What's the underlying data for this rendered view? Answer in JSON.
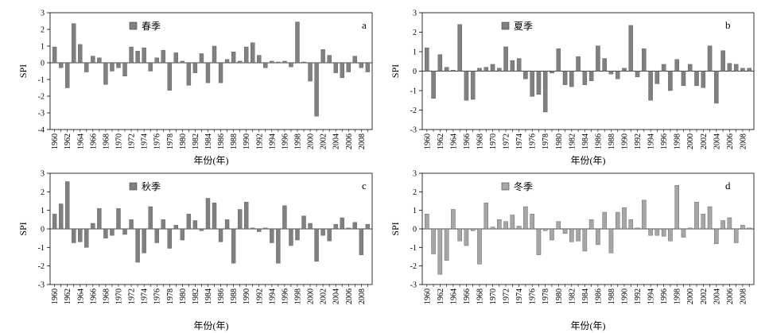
{
  "figure": {
    "xlabel": "年份(年)",
    "ylabel": "SPI"
  },
  "chart_data": [
    {
      "type": "bar",
      "panel": "a",
      "legend": "春季",
      "legend_placement": "top-left",
      "x": [
        1960,
        1961,
        1962,
        1963,
        1964,
        1965,
        1966,
        1967,
        1968,
        1969,
        1970,
        1971,
        1972,
        1973,
        1974,
        1975,
        1976,
        1977,
        1978,
        1979,
        1980,
        1981,
        1982,
        1983,
        1984,
        1985,
        1986,
        1987,
        1988,
        1989,
        1990,
        1991,
        1992,
        1993,
        1994,
        1995,
        1996,
        1997,
        1998,
        1999,
        2000,
        2001,
        2002,
        2003,
        2004,
        2005,
        2006,
        2007,
        2008,
        2009
      ],
      "values": [
        0.95,
        -0.3,
        -1.5,
        2.35,
        1.1,
        -0.55,
        0.4,
        0.3,
        -1.3,
        -0.5,
        -0.3,
        -0.8,
        0.95,
        0.7,
        0.9,
        -0.5,
        0.3,
        0.75,
        -1.65,
        0.6,
        0.1,
        -1.35,
        -0.6,
        0.55,
        -1.2,
        1.0,
        -1.2,
        0.2,
        0.65,
        0.1,
        0.95,
        1.2,
        0.45,
        -0.3,
        0.1,
        0.05,
        0.1,
        -0.25,
        2.45,
        0.05,
        -1.1,
        -3.2,
        0.8,
        0.45,
        -0.6,
        -0.9,
        -0.55,
        0.4,
        -0.3,
        -0.55
      ],
      "x_ticks": [
        "1960",
        "1962",
        "1964",
        "1966",
        "1968",
        "1970",
        "1972",
        "1974",
        "1976",
        "1978",
        "1980",
        "1982",
        "1984",
        "1986",
        "1988",
        "1990",
        "1992",
        "1994",
        "1996",
        "1998",
        "2000",
        "2002",
        "2004",
        "2006",
        "2008"
      ],
      "y_ticks": [
        "3",
        "2",
        "1",
        "0",
        "-1",
        "-2",
        "-3",
        "-4"
      ],
      "ylim": [
        -4,
        3
      ],
      "color": "#808080"
    },
    {
      "type": "bar",
      "panel": "b",
      "legend": "夏季",
      "legend_placement": "top-left",
      "x": [
        1960,
        1961,
        1962,
        1963,
        1964,
        1965,
        1966,
        1967,
        1968,
        1969,
        1970,
        1971,
        1972,
        1973,
        1974,
        1975,
        1976,
        1977,
        1978,
        1979,
        1980,
        1981,
        1982,
        1983,
        1984,
        1985,
        1986,
        1987,
        1988,
        1989,
        1990,
        1991,
        1992,
        1993,
        1994,
        1995,
        1996,
        1997,
        1998,
        1999,
        2000,
        2001,
        2002,
        2003,
        2004,
        2005,
        2006,
        2007,
        2008,
        2009
      ],
      "values": [
        1.2,
        -1.4,
        0.85,
        0.2,
        0.05,
        2.4,
        -1.5,
        -1.45,
        0.15,
        0.2,
        0.35,
        0.15,
        1.25,
        0.55,
        0.65,
        -0.4,
        -1.3,
        -1.2,
        -2.1,
        -0.1,
        1.15,
        -0.7,
        -0.8,
        0.75,
        -0.7,
        -0.5,
        1.3,
        0.65,
        -0.15,
        -0.4,
        0.15,
        2.35,
        -0.3,
        1.15,
        -1.5,
        -0.65,
        0.35,
        -1.0,
        0.6,
        -0.75,
        0.35,
        -0.75,
        -0.85,
        1.3,
        -1.65,
        1.05,
        0.4,
        0.35,
        0.15,
        0.15
      ],
      "x_ticks": [
        "1960",
        "1962",
        "1964",
        "1966",
        "1968",
        "1970",
        "1972",
        "1974",
        "1976",
        "1978",
        "1980",
        "1982",
        "1984",
        "1986",
        "1988",
        "1990",
        "1992",
        "1994",
        "1996",
        "1998",
        "2000",
        "2002",
        "2004",
        "2006",
        "2008"
      ],
      "y_ticks": [
        "3",
        "2",
        "1",
        "0",
        "-1",
        "-2",
        "-3"
      ],
      "ylim": [
        -3,
        3
      ],
      "color": "#808080"
    },
    {
      "type": "bar",
      "panel": "c",
      "legend": "秋季",
      "legend_placement": "top-left",
      "x": [
        1960,
        1961,
        1962,
        1963,
        1964,
        1965,
        1966,
        1967,
        1968,
        1969,
        1970,
        1971,
        1972,
        1973,
        1974,
        1975,
        1976,
        1977,
        1978,
        1979,
        1980,
        1981,
        1982,
        1983,
        1984,
        1985,
        1986,
        1987,
        1988,
        1989,
        1990,
        1991,
        1992,
        1993,
        1994,
        1995,
        1996,
        1997,
        1998,
        1999,
        2000,
        2001,
        2002,
        2003,
        2004,
        2005,
        2006,
        2007,
        2008,
        2009
      ],
      "values": [
        0.8,
        1.35,
        2.55,
        -0.75,
        -0.7,
        -1.0,
        0.3,
        1.1,
        -0.5,
        -0.35,
        1.1,
        -0.3,
        0.5,
        -1.8,
        -1.3,
        1.2,
        -0.75,
        0.5,
        -1.05,
        0.2,
        -0.6,
        0.8,
        0.45,
        -0.1,
        1.65,
        1.4,
        -0.7,
        0.5,
        -1.85,
        1.05,
        1.45,
        0.05,
        -0.15,
        0.05,
        -0.75,
        -1.85,
        1.25,
        -0.9,
        -0.6,
        0.7,
        0.3,
        -1.75,
        -0.35,
        -0.65,
        0.25,
        0.6,
        0.05,
        0.35,
        -1.4,
        0.25
      ],
      "x_ticks": [
        "1960",
        "1962",
        "1964",
        "1966",
        "1968",
        "1970",
        "1972",
        "1974",
        "1976",
        "1978",
        "1980",
        "1982",
        "1984",
        "1986",
        "1988",
        "1990",
        "1992",
        "1994",
        "1996",
        "1998",
        "2000",
        "2002",
        "2004",
        "2006",
        "2008"
      ],
      "y_ticks": [
        "3",
        "2",
        "1",
        "0",
        "-1",
        "-2",
        "-3"
      ],
      "ylim": [
        -3,
        3
      ],
      "color": "#808080"
    },
    {
      "type": "bar",
      "panel": "d",
      "legend": "冬季",
      "legend_placement": "top-left",
      "x": [
        1960,
        1961,
        1962,
        1963,
        1964,
        1965,
        1966,
        1967,
        1968,
        1969,
        1970,
        1971,
        1972,
        1973,
        1974,
        1975,
        1976,
        1977,
        1978,
        1979,
        1980,
        1981,
        1982,
        1983,
        1984,
        1985,
        1986,
        1987,
        1988,
        1989,
        1990,
        1991,
        1992,
        1993,
        1994,
        1995,
        1996,
        1997,
        1998,
        1999,
        2000,
        2001,
        2002,
        2003,
        2004,
        2005,
        2006,
        2007,
        2008,
        2009
      ],
      "values": [
        0.8,
        -1.35,
        -2.45,
        -1.7,
        1.05,
        -0.65,
        -0.9,
        -0.1,
        -1.9,
        1.4,
        0.1,
        0.5,
        0.4,
        0.75,
        0.15,
        1.2,
        0.8,
        -1.4,
        -0.1,
        -0.6,
        0.4,
        -0.25,
        -0.7,
        -0.65,
        -1.2,
        0.5,
        -0.85,
        0.9,
        -1.3,
        0.9,
        1.15,
        0.5,
        0.05,
        1.55,
        -0.35,
        -0.35,
        -0.4,
        -0.65,
        2.35,
        -0.45,
        0.05,
        1.45,
        0.8,
        1.2,
        -0.8,
        0.45,
        0.6,
        -0.75,
        0.2,
        0.05
      ],
      "x_ticks": [
        "1960",
        "1962",
        "1964",
        "1966",
        "1968",
        "1970",
        "1972",
        "1974",
        "1976",
        "1978",
        "1980",
        "1982",
        "1984",
        "1986",
        "1988",
        "1990",
        "1992",
        "1994",
        "1996",
        "1998",
        "2000",
        "2002",
        "2004",
        "2006",
        "2008"
      ],
      "y_ticks": [
        "3",
        "2",
        "1",
        "0",
        "-1",
        "-2",
        "-3"
      ],
      "ylim": [
        -3,
        3
      ],
      "color": "#a6a6a6"
    }
  ]
}
